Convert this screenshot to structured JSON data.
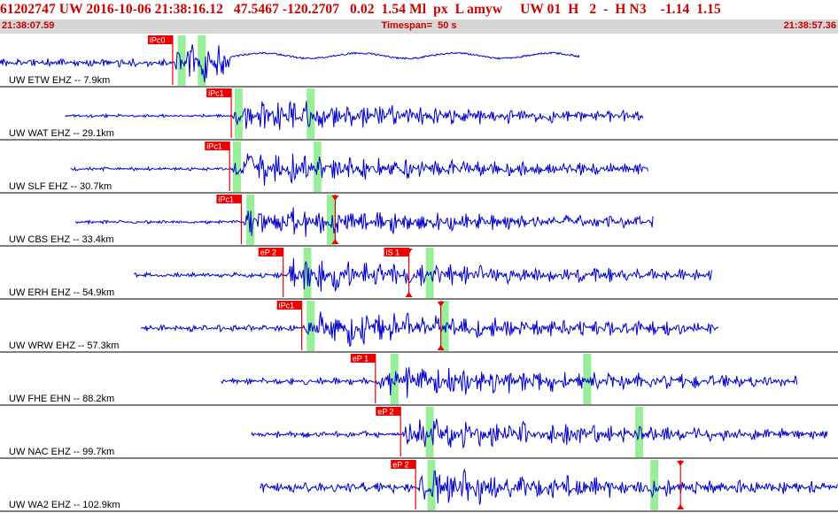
{
  "header": {
    "title": "61202747 UW 2016-10-06 21:38:16.12   47.5467 -120.2707   0.02  1.54 Ml  px  L amyw     UW 01  H   2  -  H N3    -1.14  1.15",
    "start_time": "21:38:07.59",
    "timespan": "Timespan=  50 s",
    "end_time": "21:38:57.36"
  },
  "colors": {
    "header_text": "#cc0000",
    "header_bar": "#d6d6d6",
    "trace": "#0000cc",
    "pick": "#ee0000",
    "highlight": "#99ee99",
    "separator": "#000000"
  },
  "channels": [
    {
      "label": "UW ETW EHZ -- 7.9km",
      "picks": [
        {
          "text": "iPc0",
          "t": 10.3
        }
      ],
      "highlights": [
        10.6,
        11.8
      ]
    },
    {
      "label": "UW WAT EHZ -- 29.1km",
      "picks": [
        {
          "text": "iPc1",
          "t": 13.8
        }
      ],
      "highlights": [
        14.0,
        18.3
      ]
    },
    {
      "label": "UW SLF EHZ -- 30.7km",
      "picks": [
        {
          "text": "iPc1",
          "t": 13.7
        }
      ],
      "highlights": [
        13.9,
        18.7
      ]
    },
    {
      "label": "UW CBS EHZ -- 33.4km",
      "picks": [
        {
          "text": "iPc1",
          "t": 14.4
        },
        {
          "text": "",
          "t": 20.0,
          "marker": true
        }
      ],
      "highlights": [
        14.7,
        19.5
      ]
    },
    {
      "label": "UW ERH EHZ -- 54.9km",
      "picks": [
        {
          "text": "eP 2",
          "t": 16.9
        },
        {
          "text": "iS 1",
          "t": 24.4,
          "marker": true
        }
      ],
      "highlights": [
        18.1,
        25.4
      ]
    },
    {
      "label": "UW WRW EHZ -- 57.3km",
      "picks": [
        {
          "text": "iPc1",
          "t": 18.0
        },
        {
          "text": "",
          "t": 26.3,
          "marker": true
        }
      ],
      "highlights": [
        18.3,
        26.3
      ]
    },
    {
      "label": "UW FHE EHN -- 88.2km",
      "picks": [
        {
          "text": "eP 1",
          "t": 22.4
        }
      ],
      "highlights": [
        23.3,
        34.8
      ]
    },
    {
      "label": "UW NAC EHZ -- 99.7km",
      "picks": [
        {
          "text": "eP 2",
          "t": 23.9
        }
      ],
      "highlights": [
        25.4,
        37.9
      ]
    },
    {
      "label": "UW WA2 EHZ -- 102.9km",
      "picks": [
        {
          "text": "eP 2",
          "t": 24.8
        },
        {
          "text": "",
          "t": 40.6,
          "marker": true
        }
      ],
      "highlights": [
        25.5,
        38.8
      ]
    }
  ]
}
